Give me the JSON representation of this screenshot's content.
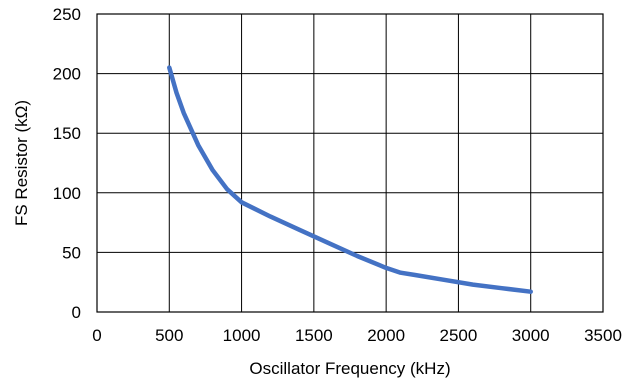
{
  "chart_data": {
    "type": "line",
    "title": "",
    "xlabel": "Oscillator Frequency (kHz)",
    "ylabel": "FS Resistor (kΩ)",
    "xlim": [
      0,
      3500
    ],
    "ylim": [
      0,
      250
    ],
    "x_ticks": [
      0,
      500,
      1000,
      1500,
      2000,
      2500,
      3000,
      3500
    ],
    "y_ticks": [
      0,
      50,
      100,
      150,
      200,
      250
    ],
    "grid": true,
    "legend": "none",
    "series": [
      {
        "color": "#4472C4",
        "x": [
          500,
          550,
          600,
          700,
          800,
          900,
          1000,
          1200,
          1400,
          1600,
          1800,
          2000,
          2100,
          2200,
          2400,
          2600,
          2800,
          3000
        ],
        "y": [
          205,
          184,
          167,
          140,
          119,
          103,
          92,
          80,
          69,
          58,
          47,
          37,
          33,
          31,
          27,
          23,
          20,
          17
        ]
      }
    ]
  }
}
